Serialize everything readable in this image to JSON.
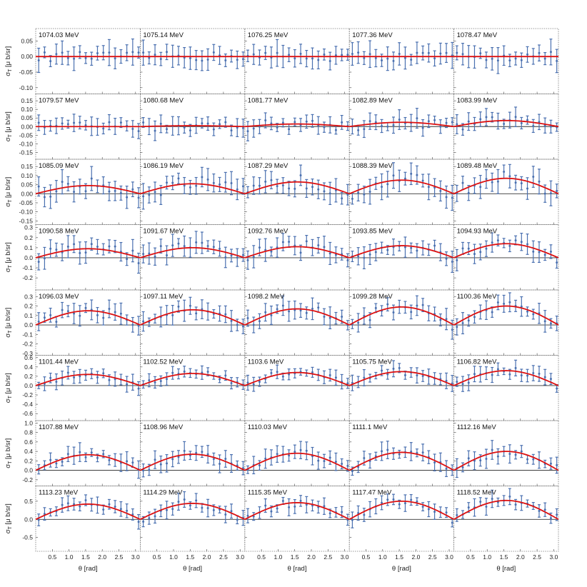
{
  "chart_data": {
    "type": "scatter",
    "description_axis": {
      "xlabel": "θ [rad]",
      "ylabel": "σ_T [μ b/sr]"
    },
    "x_ticks": [
      0.5,
      1.0,
      1.5,
      2.0,
      2.5,
      3.0
    ],
    "x_tick_labels": [
      "0.5",
      "1.0",
      "1.5",
      "2.0",
      "2.5",
      "3.0"
    ],
    "xlim": [
      0,
      3.14159
    ],
    "colors": {
      "points": "#4a70b0",
      "fit": "#dd1111",
      "zero_line": "#333333",
      "frame": "#777777"
    },
    "rows": [
      {
        "ylim": [
          -0.12,
          0.09
        ],
        "yticks": [
          -0.1,
          -0.05,
          0.0,
          0.05
        ],
        "ytick_labels": [
          "-0.10",
          "-0.05",
          "0.00",
          "0.05"
        ],
        "err": 0.03,
        "scatter": 0.015
      },
      {
        "ylim": [
          -0.19,
          0.19
        ],
        "yticks": [
          -0.15,
          -0.1,
          -0.05,
          0.0,
          0.05,
          0.1,
          0.15
        ],
        "ytick_labels": [
          "-0.15",
          "-0.10",
          "-0.05",
          "0.00",
          "0.05",
          "0.10",
          "0.15"
        ],
        "err": 0.04,
        "scatter": 0.03
      },
      {
        "ylim": [
          -0.17,
          0.19
        ],
        "yticks": [
          -0.15,
          -0.1,
          -0.05,
          0.0,
          0.05,
          0.1,
          0.15
        ],
        "ytick_labels": [
          "-0.15",
          "-0.10",
          "-0.05",
          "0.00",
          "0.05",
          "0.10",
          "0.15"
        ],
        "err": 0.05,
        "scatter": 0.04
      },
      {
        "ylim": [
          -0.32,
          0.33
        ],
        "yticks": [
          -0.2,
          -0.1,
          0.0,
          0.1,
          0.2,
          0.3
        ],
        "ytick_labels": [
          "-0.2",
          "-0.1",
          "0.0",
          "0.1",
          "0.2",
          "0.3"
        ],
        "err": 0.08,
        "scatter": 0.06
      },
      {
        "ylim": [
          -0.32,
          0.37
        ],
        "yticks": [
          -0.3,
          -0.2,
          -0.1,
          0.0,
          0.1,
          0.2,
          0.3
        ],
        "ytick_labels": [
          "-0.3",
          "-0.2",
          "-0.1",
          "0.0",
          "0.1",
          "0.2",
          "0.3"
        ],
        "err": 0.08,
        "scatter": 0.06
      },
      {
        "ylim": [
          -0.75,
          0.65
        ],
        "yticks": [
          -0.6,
          -0.4,
          -0.2,
          0.0,
          0.2,
          0.4,
          0.6
        ],
        "ytick_labels": [
          "-0.6",
          "-0.4",
          "-0.2",
          "0.0",
          "0.2",
          "0.4",
          "0.6"
        ],
        "err": 0.12,
        "scatter": 0.08
      },
      {
        "ylim": [
          -0.33,
          1.05
        ],
        "yticks": [
          -0.2,
          0.0,
          0.2,
          0.4,
          0.6,
          0.8,
          1.0
        ],
        "ytick_labels": [
          "-0.2",
          "0.0",
          "0.2",
          "0.4",
          "0.6",
          "0.8",
          "1.0"
        ],
        "err": 0.14,
        "scatter": 0.1
      },
      {
        "ylim": [
          -0.88,
          0.92
        ],
        "yticks": [
          -0.5,
          0.0,
          0.5
        ],
        "ytick_labels": [
          "-0.5",
          "0.0",
          "0.5"
        ],
        "err": 0.17,
        "scatter": 0.12
      }
    ],
    "panels": [
      {
        "energy": "1074.03 MeV",
        "amp": 0.0
      },
      {
        "energy": "1075.14 MeV",
        "amp": 0.0
      },
      {
        "energy": "1076.25 MeV",
        "amp": 0.0
      },
      {
        "energy": "1077.36 MeV",
        "amp": 0.0
      },
      {
        "energy": "1078.47 MeV",
        "amp": 0.0
      },
      {
        "energy": "1079.57 MeV",
        "amp": 0.0
      },
      {
        "energy": "1080.68 MeV",
        "amp": 0.005
      },
      {
        "energy": "1081.77 MeV",
        "amp": 0.015
      },
      {
        "energy": "1082.89 MeV",
        "amp": 0.025
      },
      {
        "energy": "1083.99 MeV",
        "amp": 0.035
      },
      {
        "energy": "1085.09 MeV",
        "amp": 0.045
      },
      {
        "energy": "1086.19 MeV",
        "amp": 0.055
      },
      {
        "energy": "1087.29 MeV",
        "amp": 0.065
      },
      {
        "energy": "1088.39 MeV",
        "amp": 0.075
      },
      {
        "energy": "1089.48 MeV",
        "amp": 0.085
      },
      {
        "energy": "1090.58 MeV",
        "amp": 0.09
      },
      {
        "energy": "1091.67 MeV",
        "amp": 0.1
      },
      {
        "energy": "1092.76 MeV",
        "amp": 0.11
      },
      {
        "energy": "1093.85 MeV",
        "amp": 0.12
      },
      {
        "energy": "1094.93 MeV",
        "amp": 0.14
      },
      {
        "energy": "1096.03 MeV",
        "amp": 0.15
      },
      {
        "energy": "1097.11 MeV",
        "amp": 0.16
      },
      {
        "energy": "1098.2 MeV",
        "amp": 0.17
      },
      {
        "energy": "1099.28 MeV",
        "amp": 0.19
      },
      {
        "energy": "1100.36 MeV",
        "amp": 0.2
      },
      {
        "energy": "1101.44 MeV",
        "amp": 0.24
      },
      {
        "energy": "1102.52 MeV",
        "amp": 0.26
      },
      {
        "energy": "1103.6 MeV",
        "amp": 0.28
      },
      {
        "energy": "1105.75 MeV",
        "amp": 0.3
      },
      {
        "energy": "1106.82 MeV",
        "amp": 0.32
      },
      {
        "energy": "1107.88 MeV",
        "amp": 0.33
      },
      {
        "energy": "1108.96 MeV",
        "amp": 0.34
      },
      {
        "energy": "1110.03 MeV",
        "amp": 0.36
      },
      {
        "energy": "1111.1 MeV",
        "amp": 0.38
      },
      {
        "energy": "1112.16 MeV",
        "amp": 0.4
      },
      {
        "energy": "1113.23 MeV",
        "amp": 0.42
      },
      {
        "energy": "1114.29 MeV",
        "amp": 0.44
      },
      {
        "energy": "1115.35 MeV",
        "amp": 0.46
      },
      {
        "energy": "1117.47 MeV",
        "amp": 0.5
      },
      {
        "energy": "1118.52 MeV",
        "amp": 0.52
      }
    ],
    "fit_model": "amp * sin(theta)",
    "points_per_panel": 18
  }
}
